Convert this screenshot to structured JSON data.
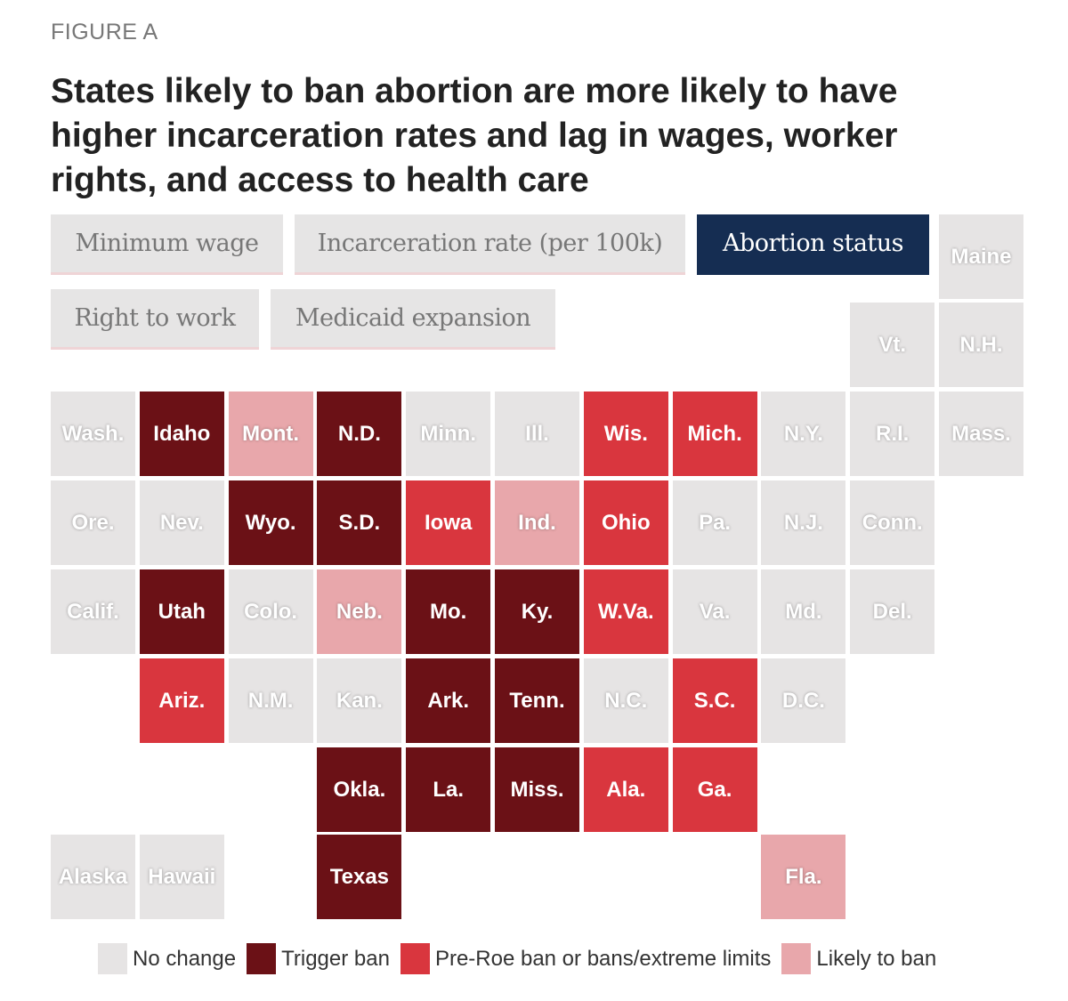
{
  "figure_label": "FIGURE A",
  "title": "States likely to ban abortion are more likely to have higher incarceration rates and lag in wages, worker rights, and access to health care",
  "tabs": [
    {
      "label": "Minimum wage",
      "active": false
    },
    {
      "label": "Incarceration rate (per 100k)",
      "active": false
    },
    {
      "label": "Abortion status",
      "active": true
    },
    {
      "label": "Right to work",
      "active": false
    },
    {
      "label": "Medicaid expansion",
      "active": false
    }
  ],
  "colors": {
    "N": "#e6e4e4",
    "T": "#6b1116",
    "P": "#d9363e",
    "L": "#e8a7ab",
    "active_tab": "#152d52"
  },
  "chart_data": {
    "type": "tile-map",
    "title": "Abortion status",
    "legend": [
      {
        "key": "N",
        "label": "No change"
      },
      {
        "key": "T",
        "label": "Trigger ban"
      },
      {
        "key": "P",
        "label": "Pre-Roe ban or bans/extreme limits"
      },
      {
        "key": "L",
        "label": "Likely to ban"
      }
    ],
    "states": [
      {
        "label": "Maine",
        "status": "N"
      },
      {
        "label": "Vt.",
        "status": "N"
      },
      {
        "label": "N.H.",
        "status": "N"
      },
      {
        "label": "Wash.",
        "status": "N"
      },
      {
        "label": "Idaho",
        "status": "T"
      },
      {
        "label": "Mont.",
        "status": "L"
      },
      {
        "label": "N.D.",
        "status": "T"
      },
      {
        "label": "Minn.",
        "status": "N"
      },
      {
        "label": "Ill.",
        "status": "N"
      },
      {
        "label": "Wis.",
        "status": "P"
      },
      {
        "label": "Mich.",
        "status": "P"
      },
      {
        "label": "N.Y.",
        "status": "N"
      },
      {
        "label": "R.I.",
        "status": "N"
      },
      {
        "label": "Mass.",
        "status": "N"
      },
      {
        "label": "Ore.",
        "status": "N"
      },
      {
        "label": "Nev.",
        "status": "N"
      },
      {
        "label": "Wyo.",
        "status": "T"
      },
      {
        "label": "S.D.",
        "status": "T"
      },
      {
        "label": "Iowa",
        "status": "P"
      },
      {
        "label": "Ind.",
        "status": "L"
      },
      {
        "label": "Ohio",
        "status": "P"
      },
      {
        "label": "Pa.",
        "status": "N"
      },
      {
        "label": "N.J.",
        "status": "N"
      },
      {
        "label": "Conn.",
        "status": "N"
      },
      {
        "label": "Calif.",
        "status": "N"
      },
      {
        "label": "Utah",
        "status": "T"
      },
      {
        "label": "Colo.",
        "status": "N"
      },
      {
        "label": "Neb.",
        "status": "L"
      },
      {
        "label": "Mo.",
        "status": "T"
      },
      {
        "label": "Ky.",
        "status": "T"
      },
      {
        "label": "W.Va.",
        "status": "P"
      },
      {
        "label": "Va.",
        "status": "N"
      },
      {
        "label": "Md.",
        "status": "N"
      },
      {
        "label": "Del.",
        "status": "N"
      },
      {
        "label": "Ariz.",
        "status": "P"
      },
      {
        "label": "N.M.",
        "status": "N"
      },
      {
        "label": "Kan.",
        "status": "N"
      },
      {
        "label": "Ark.",
        "status": "T"
      },
      {
        "label": "Tenn.",
        "status": "T"
      },
      {
        "label": "N.C.",
        "status": "N"
      },
      {
        "label": "S.C.",
        "status": "P"
      },
      {
        "label": "D.C.",
        "status": "N"
      },
      {
        "label": "Okla.",
        "status": "T"
      },
      {
        "label": "La.",
        "status": "T"
      },
      {
        "label": "Miss.",
        "status": "T"
      },
      {
        "label": "Ala.",
        "status": "P"
      },
      {
        "label": "Ga.",
        "status": "P"
      },
      {
        "label": "Alaska",
        "status": "N"
      },
      {
        "label": "Hawaii",
        "status": "N"
      },
      {
        "label": "Texas",
        "status": "T"
      },
      {
        "label": "Fla.",
        "status": "L"
      }
    ]
  }
}
